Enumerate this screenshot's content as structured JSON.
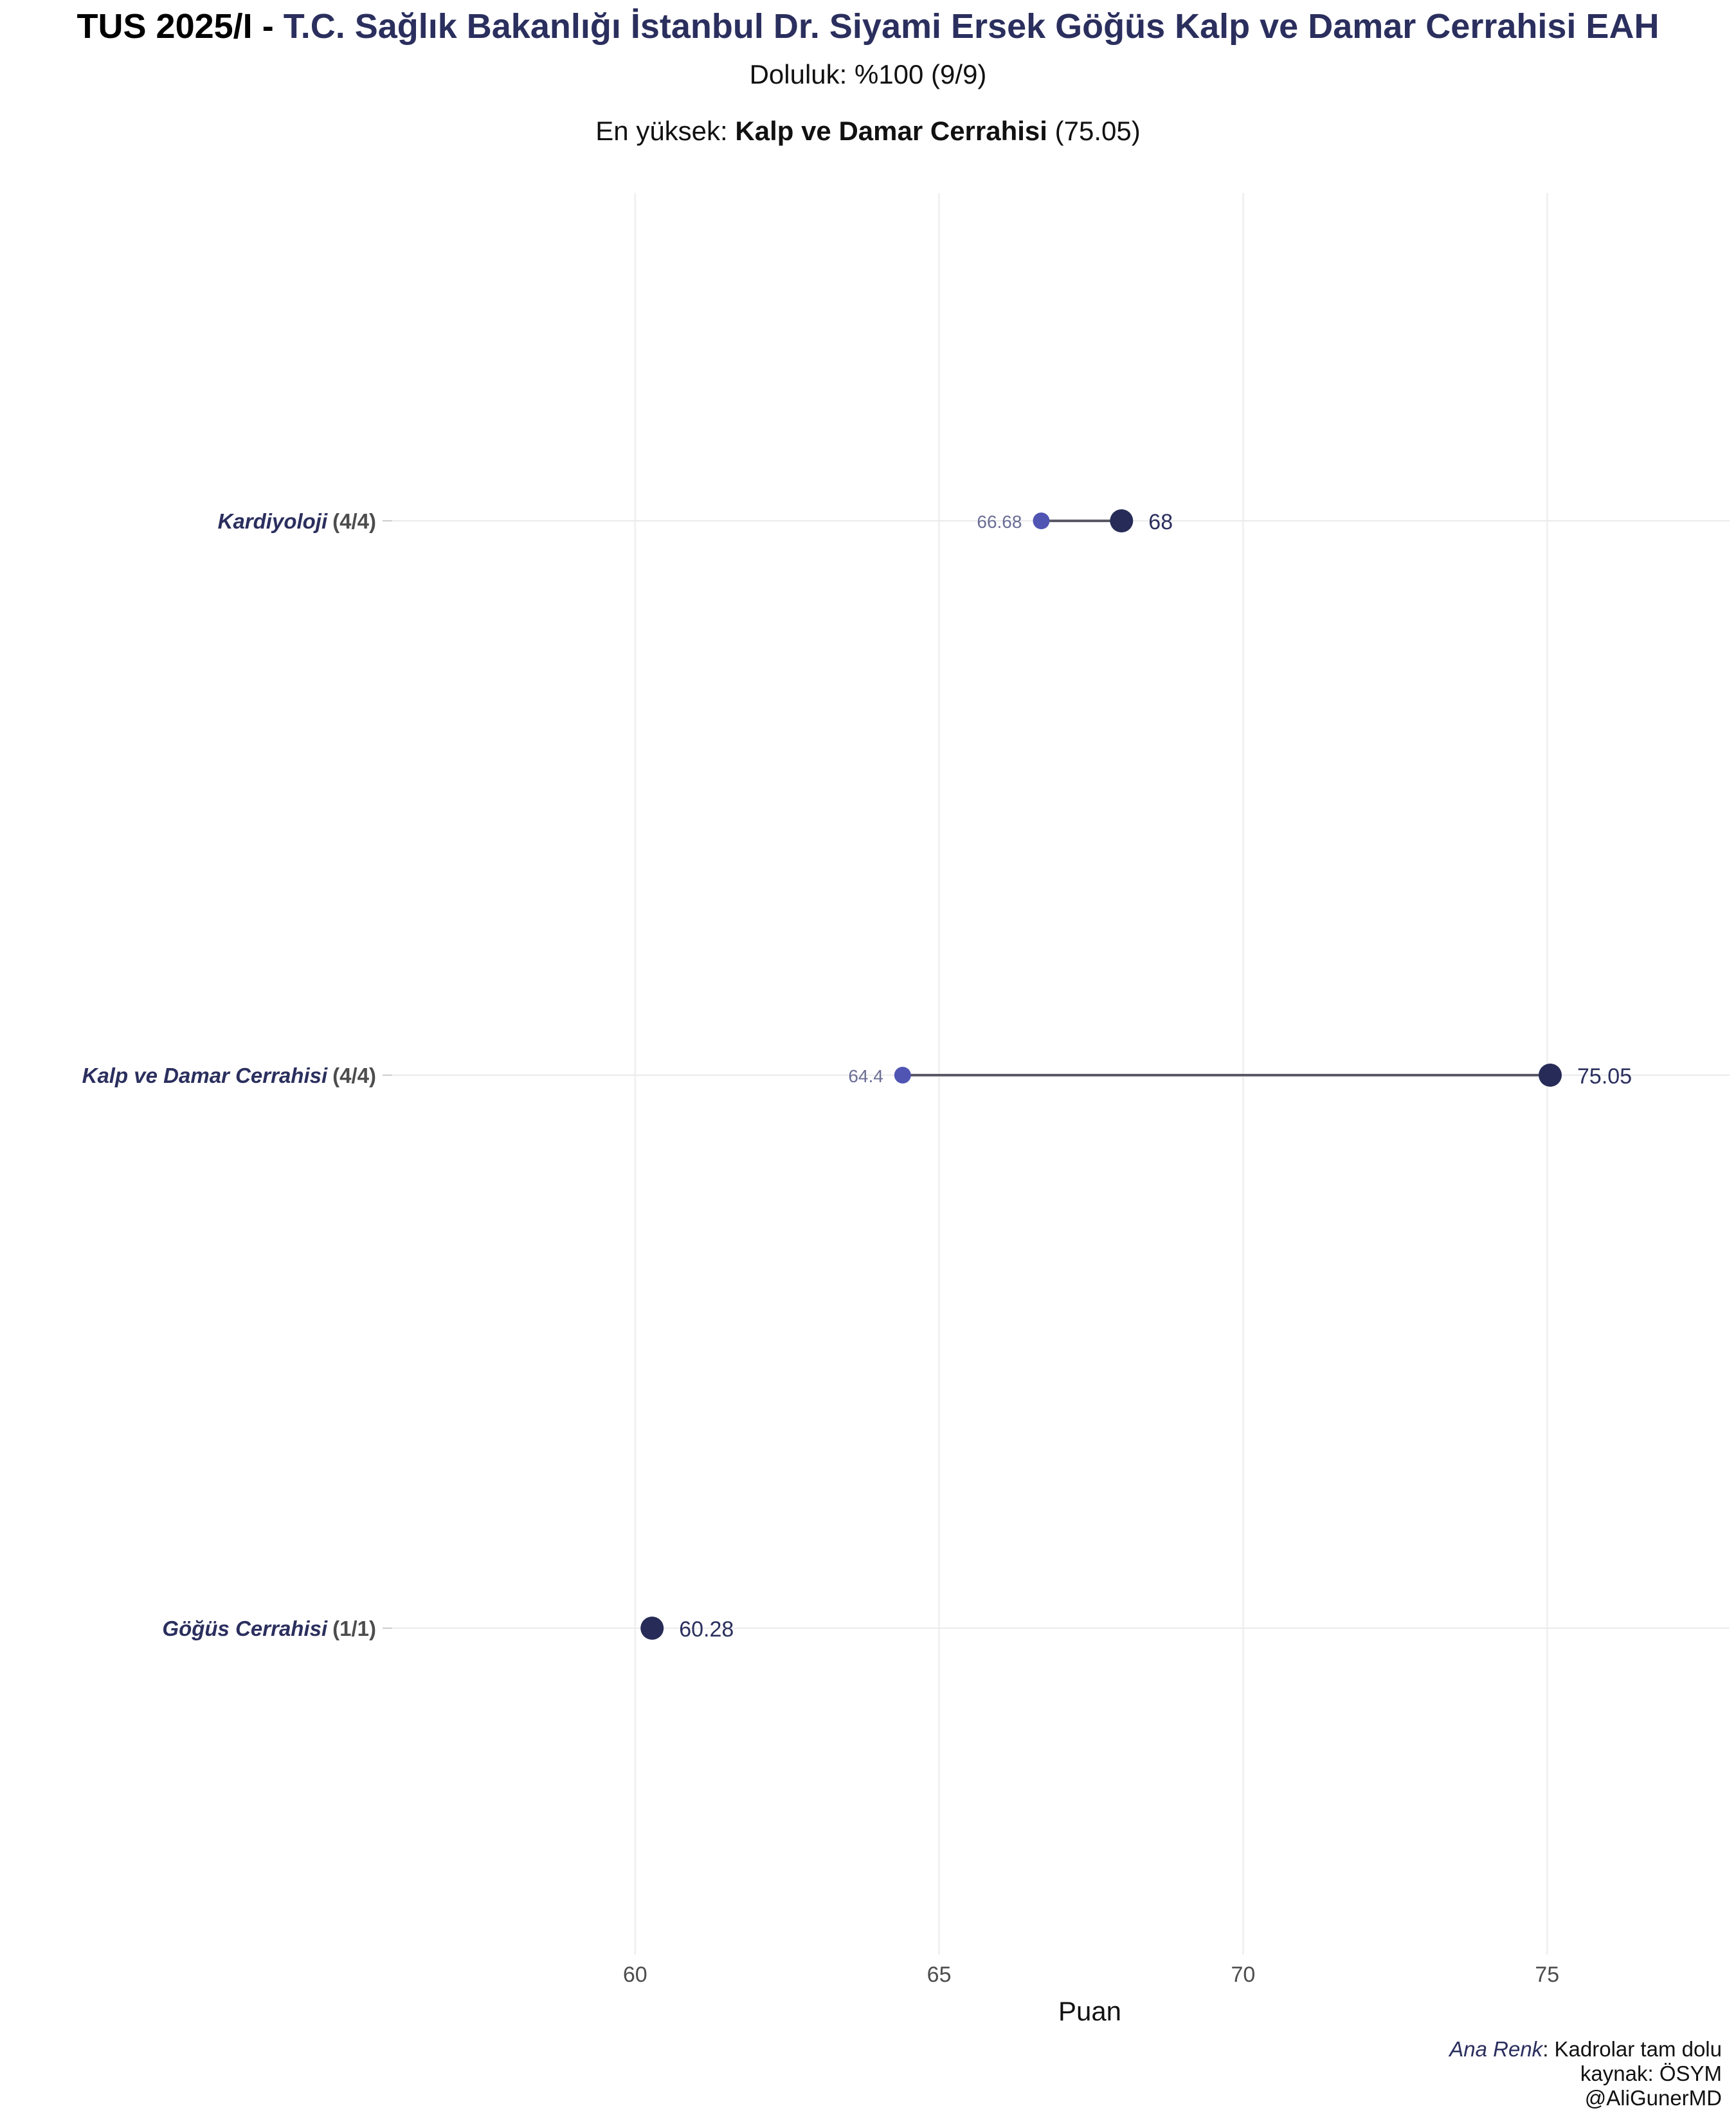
{
  "title": {
    "prefix": "TUS 2025/I - ",
    "institution": "T.C. Sağlık Bakanlığı İstanbul Dr. Siyami Ersek Göğüs Kalp ve Damar Cerrahisi EAH"
  },
  "subtitle": {
    "line1": "Doluluk: %100 (9/9)",
    "line2_prefix": "En yüksek: ",
    "line2_bold": "Kalp ve Damar Cerrahisi",
    "line2_suffix": " (75.05)"
  },
  "caption": {
    "note_label": "Ana Renk",
    "note_text": ": Kadrolar tam dolu",
    "source": "kaynak: ÖSYM",
    "handle": "@AliGunerMD"
  },
  "colors": {
    "max_point": "#272b57",
    "min_point": "#5055b4",
    "segment": "#5a5a66",
    "grid": "#ebebeb",
    "category_name": "#2b2f5e",
    "category_count": "#4d4d4d",
    "min_label": "#6b6e95",
    "max_label": "#2b2f5e",
    "tick_label": "#4d4d4d"
  },
  "chart_data": {
    "type": "dumbbell",
    "xlabel": "Puan",
    "xlim": [
      55.9,
      78.0
    ],
    "xticks": [
      60,
      65,
      70,
      75
    ],
    "grid": true,
    "categories": [
      {
        "name": "Kardiyoloji",
        "count": "(4/4)",
        "min": 66.68,
        "max": 68,
        "min_label": "66.68",
        "max_label": "68"
      },
      {
        "name": "Kalp ve Damar Cerrahisi",
        "count": "(4/4)",
        "min": 64.4,
        "max": 75.05,
        "min_label": "64.4",
        "max_label": "75.05"
      },
      {
        "name": "Göğüs Cerrahisi",
        "count": "(1/1)",
        "min": 60.28,
        "max": 60.28,
        "min_label": "",
        "max_label": "60.28"
      }
    ]
  }
}
